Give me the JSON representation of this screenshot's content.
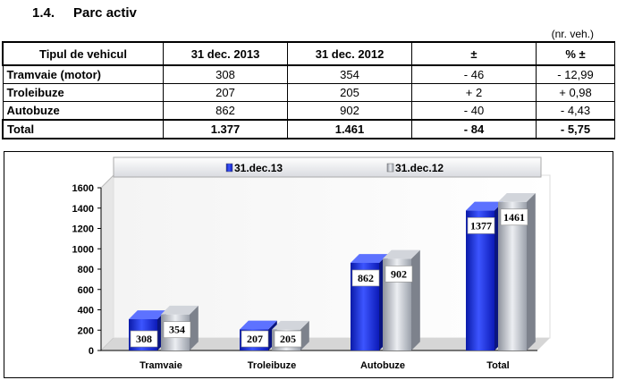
{
  "section": {
    "number": "1.4.",
    "title": "Parc activ"
  },
  "unit_note": "(nr. veh.)",
  "table": {
    "headers": [
      "Tipul de vehicul",
      "31 dec. 2013",
      "31 dec. 2012",
      "±",
      "% ±"
    ],
    "rows": [
      [
        "Tramvaie (motor)",
        "308",
        "354",
        "- 46",
        "- 12,99"
      ],
      [
        "Troleibuze",
        "207",
        "205",
        "+ 2",
        "+ 0,98"
      ],
      [
        "Autobuze",
        "862",
        "902",
        "- 40",
        "- 4,43"
      ]
    ],
    "total": [
      "Total",
      "1.377",
      "1.461",
      "- 84",
      "- 5,75"
    ]
  },
  "chart_data": {
    "type": "bar",
    "categories": [
      "Tramvaie",
      "Troleibuze",
      "Autobuze",
      "Total"
    ],
    "series": [
      {
        "name": "31.dec.13",
        "values": [
          308,
          207,
          862,
          1377
        ],
        "color": "#2233dd"
      },
      {
        "name": "31.dec.12",
        "values": [
          354,
          205,
          902,
          1461
        ],
        "color": "#a8adb8"
      }
    ],
    "ylim": [
      0,
      1600
    ],
    "yticks": [
      0,
      200,
      400,
      600,
      800,
      1000,
      1200,
      1400,
      1600
    ],
    "title": "",
    "xlabel": "",
    "ylabel": "",
    "legend": "top",
    "grid": false
  }
}
